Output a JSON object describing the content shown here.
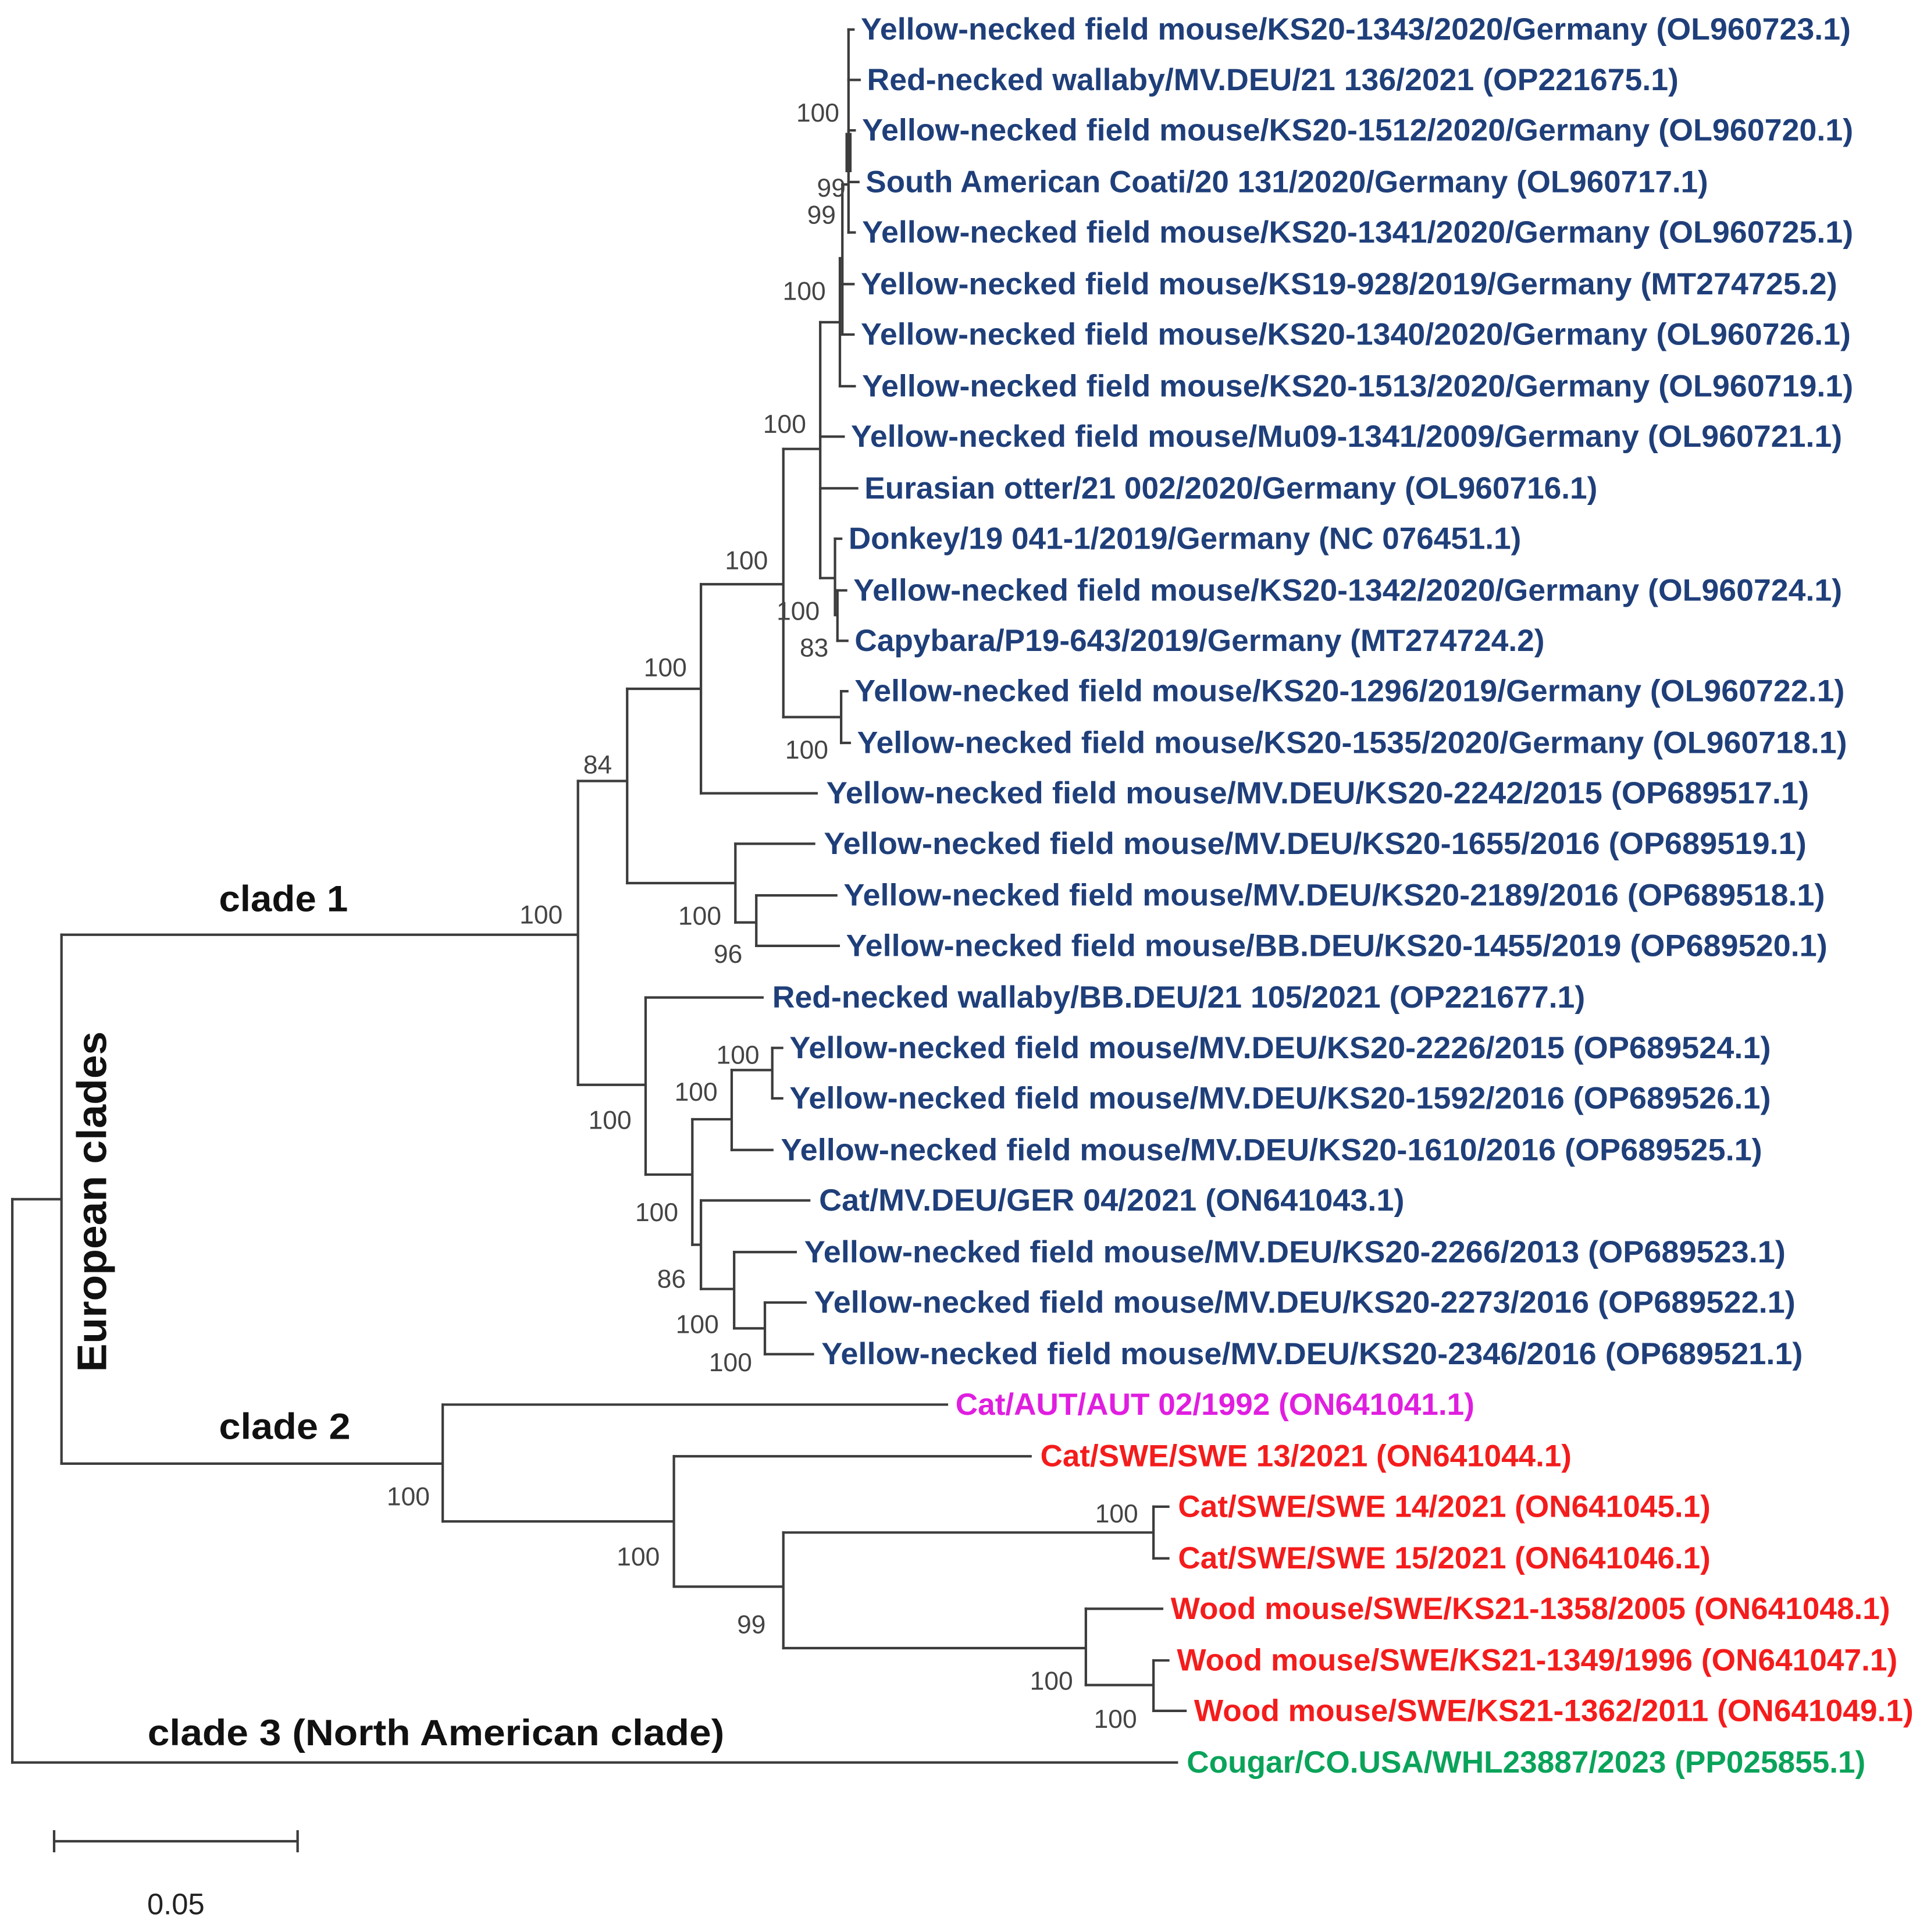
{
  "leaves": [
    {
      "label": "Yellow-necked field mouse/KS20-1343/2020/Germany (OL960723.1)",
      "color": "#1f3f7a"
    },
    {
      "label": "Red-necked wallaby/MV.DEU/21 136/2021 (OP221675.1)",
      "color": "#1f3f7a"
    },
    {
      "label": "Yellow-necked field mouse/KS20-1512/2020/Germany (OL960720.1)",
      "color": "#1f3f7a"
    },
    {
      "label": "South American Coati/20 131/2020/Germany (OL960717.1)",
      "color": "#1f3f7a"
    },
    {
      "label": "Yellow-necked field mouse/KS20-1341/2020/Germany (OL960725.1)",
      "color": "#1f3f7a"
    },
    {
      "label": "Yellow-necked field mouse/KS19-928/2019/Germany (MT274725.2)",
      "color": "#1f3f7a"
    },
    {
      "label": "Yellow-necked field mouse/KS20-1340/2020/Germany (OL960726.1)",
      "color": "#1f3f7a"
    },
    {
      "label": "Yellow-necked field mouse/KS20-1513/2020/Germany (OL960719.1)",
      "color": "#1f3f7a"
    },
    {
      "label": "Yellow-necked field mouse/Mu09-1341/2009/Germany (OL960721.1)",
      "color": "#1f3f7a"
    },
    {
      "label": "Eurasian otter/21 002/2020/Germany (OL960716.1)",
      "color": "#1f3f7a"
    },
    {
      "label": "Donkey/19 041-1/2019/Germany (NC 076451.1)",
      "color": "#1f3f7a"
    },
    {
      "label": "Yellow-necked field mouse/KS20-1342/2020/Germany (OL960724.1)",
      "color": "#1f3f7a"
    },
    {
      "label": "Capybara/P19-643/2019/Germany (MT274724.2)",
      "color": "#1f3f7a"
    },
    {
      "label": "Yellow-necked field mouse/KS20-1296/2019/Germany (OL960722.1)",
      "color": "#1f3f7a"
    },
    {
      "label": "Yellow-necked field mouse/KS20-1535/2020/Germany (OL960718.1)",
      "color": "#1f3f7a"
    },
    {
      "label": "Yellow-necked field mouse/MV.DEU/KS20-2242/2015 (OP689517.1)",
      "color": "#1f3f7a"
    },
    {
      "label": "Yellow-necked field mouse/MV.DEU/KS20-1655/2016 (OP689519.1)",
      "color": "#1f3f7a"
    },
    {
      "label": "Yellow-necked field mouse/MV.DEU/KS20-2189/2016 (OP689518.1)",
      "color": "#1f3f7a"
    },
    {
      "label": "Yellow-necked field mouse/BB.DEU/KS20-1455/2019 (OP689520.1)",
      "color": "#1f3f7a"
    },
    {
      "label": "Red-necked wallaby/BB.DEU/21 105/2021 (OP221677.1)",
      "color": "#1f3f7a"
    },
    {
      "label": "Yellow-necked field mouse/MV.DEU/KS20-2226/2015 (OP689524.1)",
      "color": "#1f3f7a"
    },
    {
      "label": "Yellow-necked field mouse/MV.DEU/KS20-1592/2016 (OP689526.1)",
      "color": "#1f3f7a"
    },
    {
      "label": "Yellow-necked field mouse/MV.DEU/KS20-1610/2016 (OP689525.1)",
      "color": "#1f3f7a"
    },
    {
      "label": "Cat/MV.DEU/GER 04/2021 (ON641043.1)",
      "color": "#1f3f7a"
    },
    {
      "label": "Yellow-necked field mouse/MV.DEU/KS20-2266/2013 (OP689523.1)",
      "color": "#1f3f7a"
    },
    {
      "label": "Yellow-necked field mouse/MV.DEU/KS20-2273/2016 (OP689522.1)",
      "color": "#1f3f7a"
    },
    {
      "label": "Yellow-necked field mouse/MV.DEU/KS20-2346/2016 (OP689521.1)",
      "color": "#1f3f7a"
    },
    {
      "label": "Cat/AUT/AUT 02/1992 (ON641041.1)",
      "color": "#e01ee0"
    },
    {
      "label": "Cat/SWE/SWE 13/2021 (ON641044.1)",
      "color": "#f41c1c"
    },
    {
      "label": "Cat/SWE/SWE 14/2021 (ON641045.1)",
      "color": "#f41c1c"
    },
    {
      "label": "Cat/SWE/SWE 15/2021 (ON641046.1)",
      "color": "#f41c1c"
    },
    {
      "label": "Wood mouse/SWE/KS21-1358/2005 (ON641048.1)",
      "color": "#f41c1c"
    },
    {
      "label": "Wood mouse/SWE/KS21-1349/1996 (ON641047.1)",
      "color": "#f41c1c"
    },
    {
      "label": "Wood mouse/SWE/KS21-1362/2011 (ON641049.1)",
      "color": "#f41c1c"
    },
    {
      "label": "Cougar/CO.USA/WHL23887/2023 (PP025855.1)",
      "color": "#0aa35a"
    }
  ],
  "bootstrap": [
    "100",
    "99",
    "99",
    "100",
    "100",
    "100",
    "100",
    "83",
    "100",
    "100",
    "84",
    "100",
    "100",
    "96",
    "100",
    "100",
    "100",
    "100",
    "86",
    "100",
    "100",
    "100",
    "100",
    "100",
    "99",
    "100",
    "100"
  ],
  "clades": {
    "clade1": "clade 1",
    "clade2": "clade 2",
    "clade3": "clade 3 (North American clade)",
    "european": "European clades"
  },
  "scale_bar": {
    "label": "0.05"
  }
}
